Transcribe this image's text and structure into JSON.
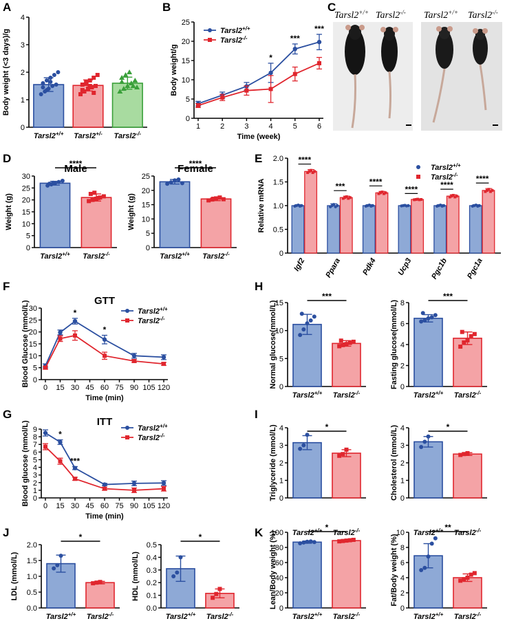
{
  "panel_letters": {
    "A": "A",
    "B": "B",
    "C": "C",
    "D": "D",
    "E": "E",
    "F": "F",
    "G": "G",
    "H": "H",
    "I": "I",
    "J": "J",
    "K": "K"
  },
  "colors": {
    "blue": "#2b4fa0",
    "blue_fill": "#8ea9d6",
    "red": "#e0262e",
    "red_fill": "#f4a3a6",
    "green": "#3aa03a",
    "green_fill": "#a8dba0"
  },
  "photo": {
    "left_labels": [
      "Tarsl2+/+",
      "Tarsl2-/-"
    ],
    "right_labels": [
      "Tarsl2+/+",
      "Tarsl2-/-"
    ],
    "description_icon": "mouse-photo-icon"
  },
  "chart_data": [
    {
      "id": "A",
      "type": "bar",
      "title": "",
      "ylabel": "Body weight (<3 days)/g",
      "categories": [
        "Tarsl2+/+",
        "Tarsl2+/-",
        "Tarsl2-/-"
      ],
      "values": [
        1.55,
        1.52,
        1.6
      ],
      "errors": [
        0.25,
        0.2,
        0.22
      ],
      "points": [
        [
          1.2,
          1.3,
          1.4,
          1.5,
          1.55,
          1.6,
          1.7,
          1.8,
          1.9,
          2.0,
          1.45,
          1.35,
          1.65
        ],
        [
          1.2,
          1.3,
          1.4,
          1.45,
          1.5,
          1.55,
          1.6,
          1.7,
          1.8,
          1.9,
          1.35,
          1.65,
          1.5,
          1.25
        ],
        [
          1.3,
          1.4,
          1.5,
          1.6,
          1.7,
          1.8,
          1.9,
          2.0,
          1.5,
          1.45,
          1.65
        ]
      ],
      "ylim": [
        0,
        4
      ],
      "yticks": [
        "0",
        "1",
        "2",
        "3",
        "4"
      ]
    },
    {
      "id": "B",
      "type": "line",
      "xlabel": "Time (week)",
      "ylabel": "Body weight/g",
      "x": [
        1,
        2,
        3,
        4,
        5,
        6
      ],
      "xticks": [
        "1",
        "2",
        "3",
        "4",
        "5",
        "6"
      ],
      "yticks": [
        "0",
        "5",
        "10",
        "15",
        "20",
        "25"
      ],
      "ylim": [
        0,
        25
      ],
      "series": [
        {
          "name": "Tarsl2+/+",
          "values": [
            3.8,
            6.0,
            8.3,
            11.8,
            18.0,
            19.8
          ],
          "errors": [
            0.6,
            0.8,
            1.0,
            2.5,
            1.3,
            2.0
          ]
        },
        {
          "name": "Tarsl2-/-",
          "values": [
            3.3,
            5.4,
            7.2,
            7.6,
            11.5,
            14.3
          ],
          "errors": [
            0.5,
            0.8,
            1.2,
            3.5,
            1.8,
            1.5
          ]
        }
      ],
      "annotations": [
        {
          "x": 4,
          "text": "*"
        },
        {
          "x": 5,
          "text": "***"
        },
        {
          "x": 6,
          "text": "***"
        }
      ]
    },
    {
      "id": "D1",
      "type": "bar",
      "title": "Male",
      "ylabel": "Weight (g)",
      "categories": [
        "Tarsl2+/+",
        "Tarsl2-/-"
      ],
      "values": [
        27.0,
        21.0
      ],
      "errors": [
        0.8,
        1.5
      ],
      "points": [
        [
          26,
          26.5,
          27,
          27.5,
          28,
          26.8,
          27.2
        ],
        [
          19.5,
          20,
          20.5,
          21,
          21.5,
          22.5,
          23,
          20.8
        ]
      ],
      "ylim": [
        0,
        30
      ],
      "yticks": [
        "0",
        "5",
        "10",
        "15",
        "20",
        "25",
        "30"
      ],
      "sig": "****"
    },
    {
      "id": "D2",
      "type": "bar",
      "title": "Female",
      "ylabel": "Weight (g)",
      "categories": [
        "Tarsl2+/+",
        "Tarsl2-/-"
      ],
      "values": [
        23.0,
        17.0
      ],
      "errors": [
        0.8,
        0.6
      ],
      "points": [
        [
          22.3,
          22.8,
          23.5,
          23.8,
          22.5
        ],
        [
          16.5,
          16.8,
          17.2,
          17.5,
          16.9
        ]
      ],
      "ylim": [
        0,
        25
      ],
      "yticks": [
        "0",
        "5",
        "10",
        "15",
        "20",
        "25"
      ],
      "sig": "****"
    },
    {
      "id": "E",
      "type": "bar",
      "ylabel": "Relative mRNA",
      "categories": [
        "Igf2",
        "Ppara",
        "Pdk4",
        "Ucp3",
        "Pgc1b",
        "Pgc1a"
      ],
      "series": [
        {
          "name": "Tarsl2+/+",
          "values": [
            1.0,
            1.0,
            1.0,
            1.0,
            1.0,
            1.0
          ],
          "errors": [
            0.02,
            0.04,
            0.02,
            0.01,
            0.02,
            0.02
          ]
        },
        {
          "name": "Tarsl2-/-",
          "values": [
            1.72,
            1.17,
            1.27,
            1.13,
            1.2,
            1.32
          ],
          "errors": [
            0.04,
            0.03,
            0.03,
            0.01,
            0.03,
            0.04
          ]
        }
      ],
      "ylim": [
        0,
        2.0
      ],
      "yticks": [
        "0",
        "0.5",
        "1.0",
        "1.5",
        "2.0"
      ],
      "sig": [
        "****",
        "***",
        "****",
        "****",
        "****",
        "****"
      ]
    },
    {
      "id": "F",
      "type": "line",
      "title": "GTT",
      "xlabel": "Time (min)",
      "ylabel": "Blood Glucose (mmol/L)",
      "x": [
        0,
        15,
        30,
        60,
        90,
        120
      ],
      "xticks": [
        "0",
        "15",
        "30",
        "45",
        "60",
        "75",
        "90",
        "105",
        "120"
      ],
      "yticks": [
        "0",
        "5",
        "10",
        "15",
        "20",
        "25",
        "30"
      ],
      "ylim": [
        0,
        30
      ],
      "series": [
        {
          "name": "Tarsl2+/+",
          "values": [
            5.8,
            19.8,
            24.5,
            16.8,
            10.0,
            9.4
          ],
          "errors": [
            0.8,
            1.0,
            1.2,
            1.8,
            1.0,
            1.0
          ]
        },
        {
          "name": "Tarsl2-/-",
          "values": [
            5.0,
            17.2,
            18.5,
            10.0,
            7.8,
            6.6
          ],
          "errors": [
            0.6,
            1.2,
            2.0,
            1.5,
            0.6,
            0.6
          ]
        }
      ],
      "annotations": [
        {
          "x": 30,
          "text": "*"
        },
        {
          "x": 60,
          "text": "*"
        }
      ]
    },
    {
      "id": "G",
      "type": "line",
      "title": "ITT",
      "xlabel": "Time (min)",
      "ylabel": "Blood glucose (mmol/L)",
      "x": [
        0,
        15,
        30,
        60,
        90,
        120
      ],
      "xticks": [
        "0",
        "15",
        "30",
        "45",
        "60",
        "75",
        "90",
        "105",
        "120"
      ],
      "yticks": [
        "0",
        "1",
        "2",
        "3",
        "4",
        "5",
        "6",
        "7",
        "8",
        "9"
      ],
      "ylim": [
        0,
        9
      ],
      "series": [
        {
          "name": "Tarsl2+/+",
          "values": [
            8.5,
            7.3,
            3.9,
            1.75,
            1.9,
            1.95
          ],
          "errors": [
            0.4,
            0.3,
            0.2,
            0.15,
            0.3,
            0.3
          ]
        },
        {
          "name": "Tarsl2-/-",
          "values": [
            6.7,
            4.8,
            2.5,
            1.2,
            1.0,
            1.2
          ],
          "errors": [
            0.4,
            0.4,
            0.2,
            0.2,
            0.3,
            0.3
          ]
        }
      ],
      "annotations": [
        {
          "x": 15,
          "text": "*"
        },
        {
          "x": 30,
          "text": "***"
        }
      ]
    },
    {
      "id": "H1",
      "type": "bar",
      "ylabel": "Normal glucose(mmol/L)",
      "categories": [
        "Tarsl2+/+",
        "Tarsl2-/-"
      ],
      "values": [
        11.1,
        7.7
      ],
      "errors": [
        1.8,
        0.5
      ],
      "points": [
        [
          9.2,
          10.2,
          11.3,
          11.8,
          12.5,
          13.0
        ],
        [
          7.2,
          7.4,
          7.6,
          7.8,
          8.0,
          8.2,
          7.5
        ]
      ],
      "ylim": [
        0,
        15
      ],
      "yticks": [
        "0",
        "5",
        "10",
        "15"
      ],
      "sig": "***"
    },
    {
      "id": "H2",
      "type": "bar",
      "ylabel": "Fasting glucose(mmol/L)",
      "categories": [
        "Tarsl2+/+",
        "Tarsl2-/-"
      ],
      "values": [
        6.5,
        4.6
      ],
      "errors": [
        0.35,
        0.6
      ],
      "points": [
        [
          6.2,
          6.3,
          6.5,
          6.6,
          6.8,
          7.0
        ],
        [
          3.8,
          4.2,
          4.4,
          4.8,
          5.0,
          5.2
        ]
      ],
      "ylim": [
        0,
        8
      ],
      "yticks": [
        "0",
        "2",
        "4",
        "6",
        "8"
      ],
      "sig": "***"
    },
    {
      "id": "I1",
      "type": "bar",
      "ylabel": "Triglyceride (mmol/L)",
      "categories": [
        "",
        ""
      ],
      "values": [
        3.15,
        2.55
      ],
      "errors": [
        0.4,
        0.2
      ],
      "points": [
        [
          2.8,
          3.0,
          3.6
        ],
        [
          2.4,
          2.5,
          2.75
        ]
      ],
      "ylim": [
        0,
        4
      ],
      "yticks": [
        "0",
        "1",
        "2",
        "3",
        "4"
      ],
      "sig": "*"
    },
    {
      "id": "I2",
      "type": "bar",
      "ylabel": "Cholesterol (mmol/L)",
      "categories": [
        "",
        ""
      ],
      "values": [
        3.2,
        2.5
      ],
      "errors": [
        0.3,
        0.08
      ],
      "points": [
        [
          2.9,
          3.2,
          3.5
        ],
        [
          2.45,
          2.5,
          2.55
        ]
      ],
      "ylim": [
        0,
        4
      ],
      "yticks": [
        "0",
        "1",
        "2",
        "3",
        "4"
      ],
      "sig": "*"
    },
    {
      "id": "J1",
      "type": "bar",
      "ylabel": "LDL (mmol/L)",
      "categories": [
        "Tarsl2+/+",
        "Tarsl2-/-"
      ],
      "values": [
        1.4,
        0.8
      ],
      "errors": [
        0.27,
        0.04
      ],
      "points": [
        [
          1.25,
          1.35,
          1.65
        ],
        [
          0.78,
          0.8,
          0.82
        ]
      ],
      "ylim": [
        0,
        2.0
      ],
      "yticks": [
        "0.0",
        "0.5",
        "1.0",
        "1.5",
        "2.0"
      ],
      "sig": "*"
    },
    {
      "id": "J2",
      "type": "bar",
      "ylabel": "HDL (mmol/L)",
      "categories": [
        "Tarsl2+/+",
        "Tarsl2-/-"
      ],
      "values": [
        0.31,
        0.115
      ],
      "errors": [
        0.1,
        0.035
      ],
      "points": [
        [
          0.25,
          0.28,
          0.4
        ],
        [
          0.08,
          0.11,
          0.15
        ]
      ],
      "ylim": [
        0,
        0.5
      ],
      "yticks": [
        "0.0",
        "0.1",
        "0.2",
        "0.3",
        "0.4",
        "0.5"
      ],
      "sig": "*"
    },
    {
      "id": "K1",
      "type": "bar",
      "ylabel": "Lean/Body weight (%)",
      "categories": [
        "Tarsl2+/+",
        "Tarsl2-/-"
      ],
      "values": [
        87,
        89
      ],
      "errors": [
        1.5,
        1.2
      ],
      "points": [
        [
          85.5,
          86.5,
          87.5,
          88,
          87
        ],
        [
          88,
          88.5,
          89,
          89.5,
          90
        ]
      ],
      "ylim": [
        0,
        100
      ],
      "yticks": [
        "0",
        "20",
        "40",
        "60",
        "80",
        "100"
      ],
      "sig": "*",
      "top_labels": [
        "Tarsl2+/+",
        "Tarsl2-/-"
      ]
    },
    {
      "id": "K2",
      "type": "bar",
      "ylabel": "Fat/Body weight (%)",
      "categories": [
        "Tarsl2+/+",
        "Tarsl2-/-"
      ],
      "values": [
        6.9,
        4.0
      ],
      "errors": [
        1.6,
        0.5
      ],
      "points": [
        [
          5.0,
          5.3,
          6.8,
          8.5,
          9.2
        ],
        [
          3.6,
          3.8,
          4.0,
          4.4,
          4.6
        ]
      ],
      "ylim": [
        0,
        10
      ],
      "yticks": [
        "0",
        "2",
        "4",
        "6",
        "8",
        "10"
      ],
      "sig": "**",
      "top_labels": [
        "Tarsl2+/+",
        "Tarsl2-/-"
      ]
    }
  ]
}
